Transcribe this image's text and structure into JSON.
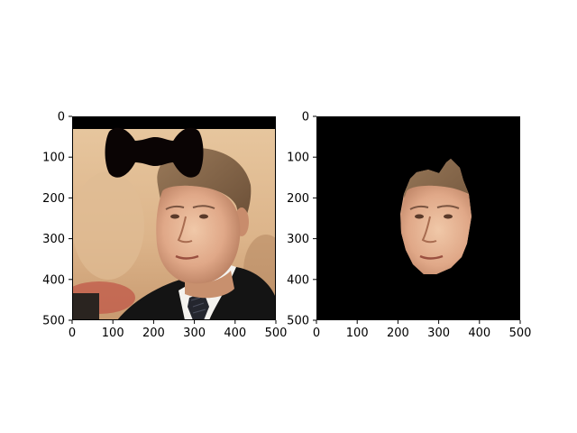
{
  "chart_data": [
    {
      "type": "image",
      "title": "",
      "xlabel": "",
      "ylabel": "",
      "xlim": [
        0,
        500
      ],
      "ylim": [
        500,
        0
      ],
      "xticks": [
        0,
        100,
        200,
        300,
        400,
        500
      ],
      "yticks": [
        0,
        100,
        200,
        300,
        400,
        500
      ],
      "xtick_labels": [
        "0",
        "100",
        "200",
        "300",
        "400",
        "500"
      ],
      "ytick_labels": [
        "0",
        "100",
        "200",
        "300",
        "400",
        "500"
      ],
      "grid": false,
      "content": "photo"
    },
    {
      "type": "image",
      "title": "",
      "xlabel": "",
      "ylabel": "",
      "xlim": [
        0,
        500
      ],
      "ylim": [
        500,
        0
      ],
      "xticks": [
        0,
        100,
        200,
        300,
        400,
        500
      ],
      "yticks": [
        0,
        100,
        200,
        300,
        400,
        500
      ],
      "xtick_labels": [
        "0",
        "100",
        "200",
        "300",
        "400",
        "500"
      ],
      "ytick_labels": [
        "0",
        "100",
        "200",
        "300",
        "400",
        "500"
      ],
      "grid": false,
      "content": "masked-face"
    }
  ]
}
